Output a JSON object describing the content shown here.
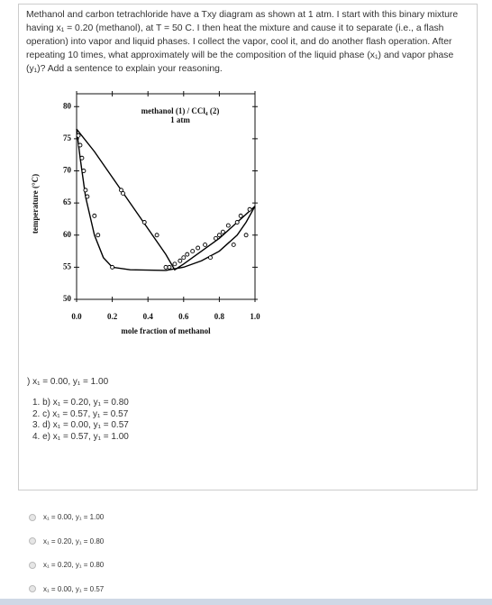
{
  "question": "Methanol and carbon tetrachloride have a Txy diagram as shown at 1 atm.  I start with this binary mixture having x₁ = 0.20 (methanol), at T = 50 C.  I then heat the mixture and cause it to separate (i.e., a flash operation) into vapor and liquid phases.  I collect the vapor, cool it, and do another flash operation.  After repeating 10 times, what approximately will be the composition of the liquid phase (x₁) and vapor phase (y₁)? Add a sentence to explain your reasoning.",
  "answer_line": ") x₁ = 0.00, y₁ = 1.00",
  "list": [
    "1. b) x₁ = 0.20, y₁ = 0.80",
    "2. c) x₁ = 0.57, y₁ = 0.57",
    "3. d) x₁ = 0.00, y₁ = 0.57",
    "4. e) x₁ = 0.57, y₁ = 1.00"
  ],
  "options": [
    "x₁ = 0.00, y₁ = 1.00",
    "x₁ = 0.20, y₁ = 0.80",
    "x₁ = 0.20, y₁ = 0.80",
    "x₁ = 0.00, y₁ = 0.57"
  ],
  "chart_data": {
    "type": "line",
    "title": "methanol (1) / CCl₄ (2)",
    "subtitle": "1 atm",
    "x_label": "mole fraction of methanol",
    "y_label": "temperature (°C)",
    "xlim": [
      0,
      1
    ],
    "ylim": [
      50,
      82
    ],
    "xticks": [
      {
        "value": 0,
        "label": "0.0"
      },
      {
        "value": 0.2,
        "label": "0.2"
      },
      {
        "value": 0.4,
        "label": "0.4"
      },
      {
        "value": 0.6,
        "label": "0.6"
      },
      {
        "value": 0.8,
        "label": "0.8"
      },
      {
        "value": 1,
        "label": "1.0"
      }
    ],
    "yticks": [
      50,
      55,
      60,
      65,
      70,
      75,
      80
    ],
    "series": [
      {
        "style": "line",
        "color": "#000000",
        "x": [
          0,
          0.02,
          0.05,
          0.1,
          0.15,
          0.2,
          0.3,
          0.5,
          0.6,
          0.7,
          0.8,
          0.9,
          0.95,
          1
        ],
        "values": [
          76.5,
          72,
          66,
          60,
          56.5,
          55,
          54.6,
          54.5,
          55,
          56,
          57.5,
          60,
          62,
          64.5
        ]
      },
      {
        "style": "line",
        "color": "#000000",
        "x": [
          0,
          0.1,
          0.2,
          0.3,
          0.4,
          0.5,
          0.55,
          0.6,
          0.7,
          0.8,
          0.9,
          1
        ],
        "values": [
          76.5,
          73,
          69,
          65,
          61,
          57,
          54.6,
          55.5,
          57.5,
          59.5,
          62,
          64.5
        ]
      },
      {
        "style": "markers",
        "color": "#000000",
        "x": [
          0.01,
          0.02,
          0.03,
          0.04,
          0.05,
          0.06,
          0.1,
          0.12,
          0.2,
          0.25,
          0.26,
          0.38,
          0.45,
          0.5,
          0.52,
          0.55,
          0.58,
          0.6,
          0.62,
          0.65,
          0.68,
          0.72,
          0.75,
          0.78,
          0.8,
          0.82,
          0.85,
          0.88,
          0.9,
          0.92,
          0.95,
          0.97
        ],
        "values": [
          75.5,
          74,
          72,
          70,
          67,
          66,
          63,
          60,
          55,
          67,
          66.5,
          62,
          60,
          55,
          55,
          55.5,
          56,
          56.5,
          57,
          57.5,
          58,
          58.5,
          56.5,
          59.5,
          60,
          60.5,
          61.5,
          58.5,
          62,
          63,
          60,
          64
        ]
      }
    ]
  }
}
